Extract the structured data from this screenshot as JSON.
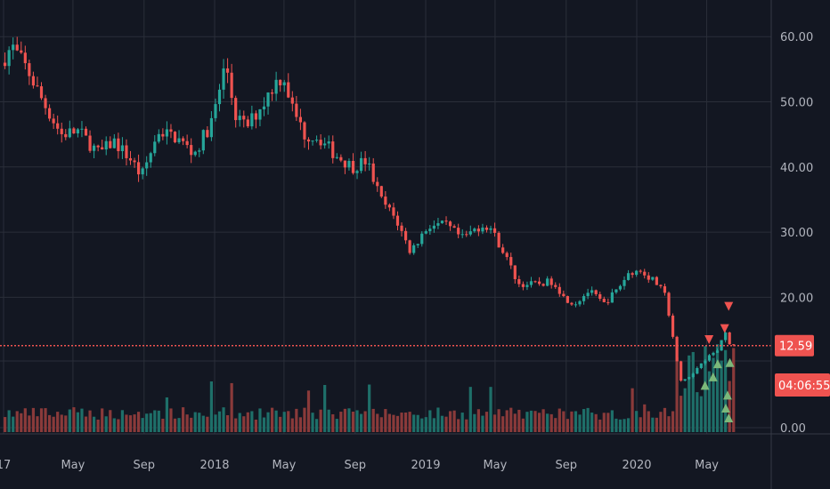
{
  "colors": {
    "background": "#131722",
    "grid": "#2a2e39",
    "axis_line": "#363a45",
    "tick_text": "#b2b5be",
    "up": "#26a69a",
    "down": "#ef5350",
    "volume_up": "#1e6f69",
    "volume_down": "#8a3a3a",
    "price_line": "#ef5350",
    "marker_up": "#7cb87a",
    "marker_down": "#ef5350"
  },
  "chart_data": {
    "type": "candlestick",
    "title": "",
    "grid": true,
    "ylim": [
      0,
      65
    ],
    "y_ticks": [
      {
        "value": 60,
        "label": "60.00"
      },
      {
        "value": 50,
        "label": "50.00"
      },
      {
        "value": 40,
        "label": "40.00"
      },
      {
        "value": 30,
        "label": "30.00"
      },
      {
        "value": 20,
        "label": "20.00"
      },
      {
        "value": 0,
        "label": "0.00"
      }
    ],
    "x_ticks": [
      {
        "date": "2017-01-01",
        "label": "17"
      },
      {
        "date": "2017-05-01",
        "label": "May"
      },
      {
        "date": "2017-09-01",
        "label": "Sep"
      },
      {
        "date": "2018-01-01",
        "label": "2018"
      },
      {
        "date": "2018-05-01",
        "label": "May"
      },
      {
        "date": "2018-09-01",
        "label": "Sep"
      },
      {
        "date": "2019-01-01",
        "label": "2019"
      },
      {
        "date": "2019-05-01",
        "label": "May"
      },
      {
        "date": "2019-09-01",
        "label": "Sep"
      },
      {
        "date": "2020-01-01",
        "label": "2020"
      },
      {
        "date": "2020-05-01",
        "label": "May"
      }
    ],
    "x_range": [
      "2017-01-01",
      "2020-06-30"
    ],
    "price_path": [
      [
        "2017-01-01",
        56
      ],
      [
        "2017-01-20",
        58.5
      ],
      [
        "2017-02-15",
        55
      ],
      [
        "2017-03-15",
        50
      ],
      [
        "2017-04-15",
        45
      ],
      [
        "2017-05-15",
        45.5
      ],
      [
        "2017-06-20",
        42
      ],
      [
        "2017-07-15",
        44
      ],
      [
        "2017-08-15",
        41
      ],
      [
        "2017-09-01",
        38.5
      ],
      [
        "2017-10-01",
        45.5
      ],
      [
        "2017-11-01",
        44.5
      ],
      [
        "2017-12-01",
        42
      ],
      [
        "2018-01-01",
        47
      ],
      [
        "2018-01-25",
        56
      ],
      [
        "2018-02-10",
        48
      ],
      [
        "2018-03-01",
        46
      ],
      [
        "2018-04-01",
        50
      ],
      [
        "2018-04-20",
        53
      ],
      [
        "2018-05-05",
        54
      ],
      [
        "2018-05-20",
        49
      ],
      [
        "2018-06-10",
        45
      ],
      [
        "2018-07-05",
        44.5
      ],
      [
        "2018-08-01",
        42
      ],
      [
        "2018-09-01",
        40
      ],
      [
        "2018-09-25",
        41
      ],
      [
        "2018-10-20",
        35
      ],
      [
        "2018-11-15",
        32
      ],
      [
        "2018-12-10",
        27
      ],
      [
        "2019-01-10",
        31
      ],
      [
        "2019-02-10",
        31
      ],
      [
        "2019-03-10",
        29
      ],
      [
        "2019-04-10",
        31
      ],
      [
        "2019-04-25",
        31
      ],
      [
        "2019-05-20",
        27
      ],
      [
        "2019-06-15",
        22
      ],
      [
        "2019-07-15",
        22
      ],
      [
        "2019-08-15",
        22.5
      ],
      [
        "2019-09-01",
        20
      ],
      [
        "2019-09-20",
        19
      ],
      [
        "2019-10-15",
        21
      ],
      [
        "2019-11-10",
        19
      ],
      [
        "2019-12-01",
        21
      ],
      [
        "2019-12-25",
        24
      ],
      [
        "2020-01-15",
        24
      ],
      [
        "2020-02-10",
        22
      ],
      [
        "2020-02-25",
        20
      ],
      [
        "2020-03-10",
        13
      ],
      [
        "2020-03-20",
        7
      ],
      [
        "2020-04-10",
        8
      ],
      [
        "2020-04-25",
        10
      ],
      [
        "2020-05-10",
        11
      ],
      [
        "2020-05-25",
        12
      ],
      [
        "2020-06-05",
        15
      ],
      [
        "2020-06-15",
        12.59
      ]
    ],
    "last_price": 12.59,
    "price_label": "12.59",
    "countdown_label": "04:06:55",
    "markers": [
      {
        "date": "2020-05-05",
        "price": 13.5,
        "direction": "down"
      },
      {
        "date": "2020-06-01",
        "price": 15.2,
        "direction": "down"
      },
      {
        "date": "2020-06-08",
        "price": 18.6,
        "direction": "down"
      },
      {
        "date": "2020-04-28",
        "price": 6.5,
        "direction": "up"
      },
      {
        "date": "2020-05-12",
        "price": 7.8,
        "direction": "up"
      },
      {
        "date": "2020-05-20",
        "price": 9.8,
        "direction": "up"
      },
      {
        "date": "2020-06-03",
        "price": 3.0,
        "direction": "up"
      },
      {
        "date": "2020-06-06",
        "price": 5.0,
        "direction": "up"
      },
      {
        "date": "2020-06-08",
        "price": 1.5,
        "direction": "up"
      },
      {
        "date": "2020-06-10",
        "price": 10.0,
        "direction": "up"
      }
    ]
  }
}
